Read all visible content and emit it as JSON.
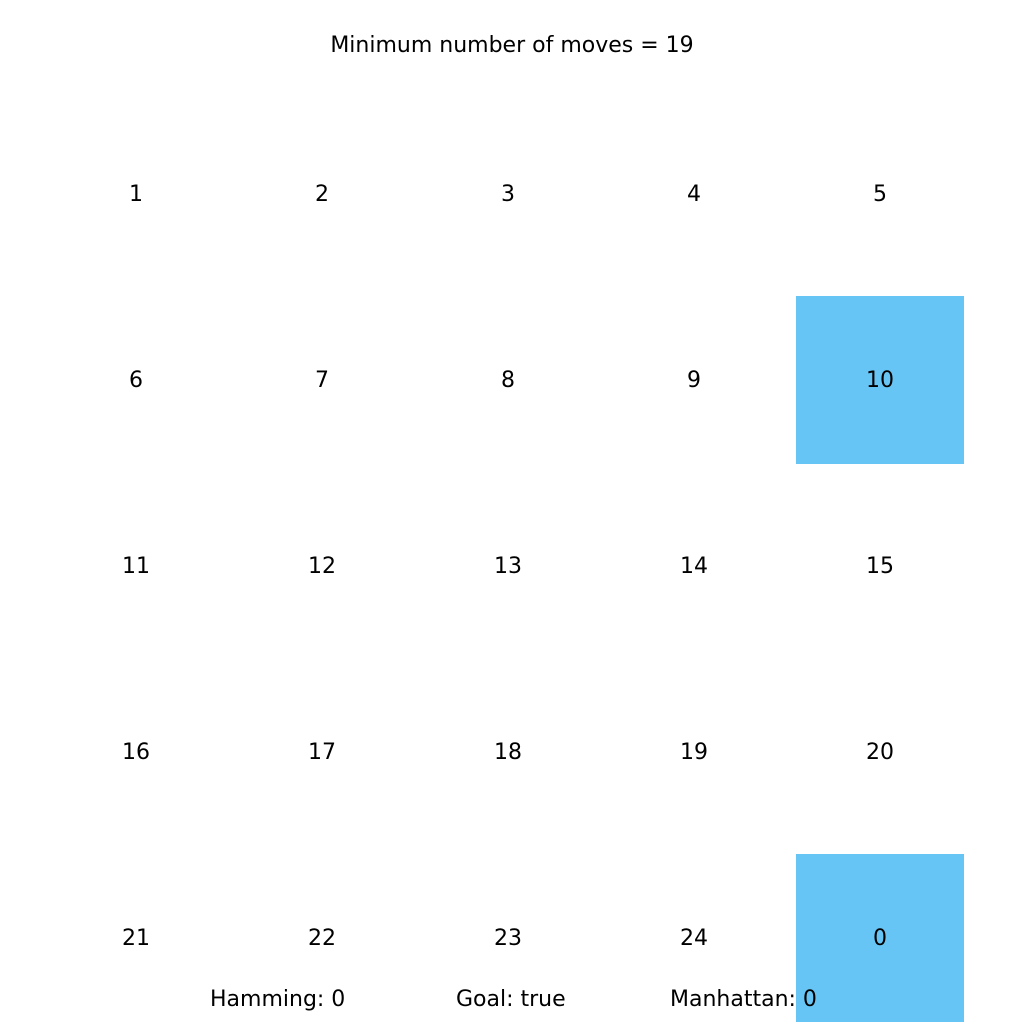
{
  "header": {
    "title": "Minimum number of moves = 19"
  },
  "board": {
    "size": 5,
    "highlight_color": "#66c5f4",
    "tiles": [
      {
        "label": "1",
        "highlighted": false
      },
      {
        "label": "2",
        "highlighted": false
      },
      {
        "label": "3",
        "highlighted": false
      },
      {
        "label": "4",
        "highlighted": false
      },
      {
        "label": "5",
        "highlighted": false
      },
      {
        "label": "6",
        "highlighted": false
      },
      {
        "label": "7",
        "highlighted": false
      },
      {
        "label": "8",
        "highlighted": false
      },
      {
        "label": "9",
        "highlighted": false
      },
      {
        "label": "10",
        "highlighted": true
      },
      {
        "label": "11",
        "highlighted": false
      },
      {
        "label": "12",
        "highlighted": false
      },
      {
        "label": "13",
        "highlighted": false
      },
      {
        "label": "14",
        "highlighted": false
      },
      {
        "label": "15",
        "highlighted": false
      },
      {
        "label": "16",
        "highlighted": false
      },
      {
        "label": "17",
        "highlighted": false
      },
      {
        "label": "18",
        "highlighted": false
      },
      {
        "label": "19",
        "highlighted": false
      },
      {
        "label": "20",
        "highlighted": false
      },
      {
        "label": "21",
        "highlighted": false
      },
      {
        "label": "22",
        "highlighted": false
      },
      {
        "label": "23",
        "highlighted": false
      },
      {
        "label": "24",
        "highlighted": false
      },
      {
        "label": "0",
        "highlighted": true
      }
    ]
  },
  "status": {
    "hamming": "Hamming: 0",
    "goal": "Goal: true",
    "manhattan": "Manhattan: 0"
  }
}
